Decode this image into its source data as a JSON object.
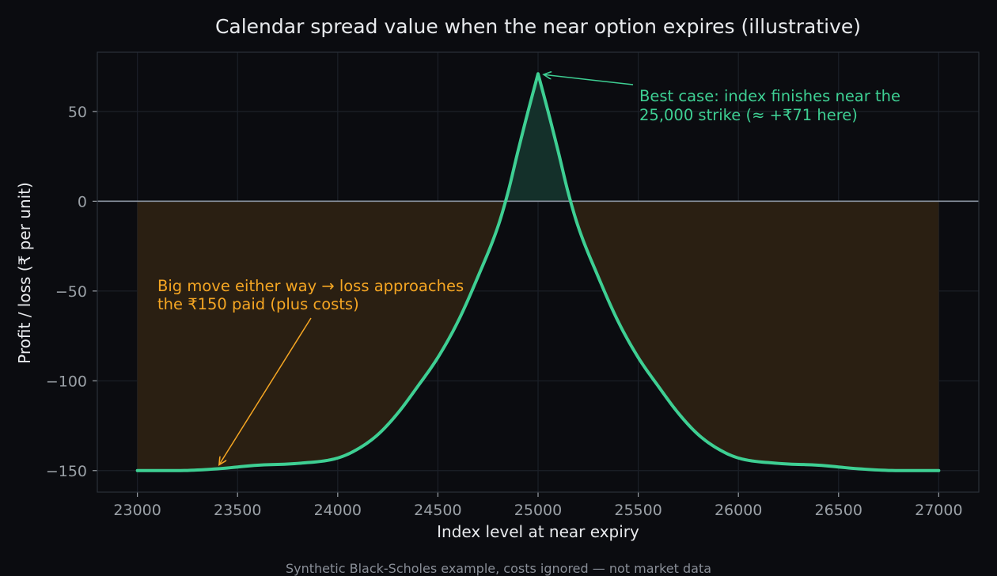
{
  "chart_data": {
    "type": "line",
    "title": "Calendar spread value when the near option expires (illustrative)",
    "xlabel": "Index level at near expiry",
    "ylabel": "Profit / loss (₹ per unit)",
    "xlim": [
      22800,
      27200
    ],
    "ylim": [
      -162,
      83
    ],
    "xticks": [
      23000,
      23500,
      24000,
      24500,
      25000,
      25500,
      26000,
      26500,
      27000
    ],
    "yticks": [
      -150,
      -100,
      -50,
      0,
      50
    ],
    "grid": true,
    "series": [
      {
        "x": [
          23000,
          23200,
          23400,
          23600,
          23800,
          24000,
          24100,
          24200,
          24300,
          24400,
          24500,
          24600,
          24700,
          24800,
          24850,
          24900,
          24950,
          25000,
          25050,
          25100,
          25150,
          25200,
          25300,
          25400,
          25500,
          25600,
          25700,
          25800,
          25900,
          26000,
          26200,
          26400,
          26600,
          26800,
          27000
        ],
        "y": [
          -150,
          -150,
          -149,
          -147,
          -146,
          -143,
          -138,
          -130,
          -118,
          -103,
          -87,
          -67,
          -42,
          -14,
          5,
          28,
          50,
          71,
          50,
          28,
          5,
          -14,
          -42,
          -67,
          -87,
          -103,
          -118,
          -130,
          -138,
          -143,
          -146,
          -147,
          -149,
          -150,
          -150
        ]
      }
    ],
    "colors": {
      "line": "#3ecf93",
      "profit_fill": "#14302a",
      "loss_fill": "#2a1f12",
      "zero_line": "#8a93a0",
      "grid": "#1c2028",
      "spine": "#2b313a",
      "orange_annotation": "#f5a623"
    },
    "annotations": [
      {
        "lines": [
          "Best case: index finishes near the",
          "25,000 strike (≈ +₹71 here)"
        ],
        "color": "#3ecf93",
        "points_to": {
          "x": 25000,
          "y": 71
        }
      },
      {
        "lines": [
          "Big move either way → loss approaches",
          "the ₹150 paid (plus costs)"
        ],
        "color": "#f5a623",
        "points_to": {
          "x": 23400,
          "y": -149
        }
      }
    ],
    "footer": "Synthetic Black-Scholes example, costs ignored — not market data"
  }
}
